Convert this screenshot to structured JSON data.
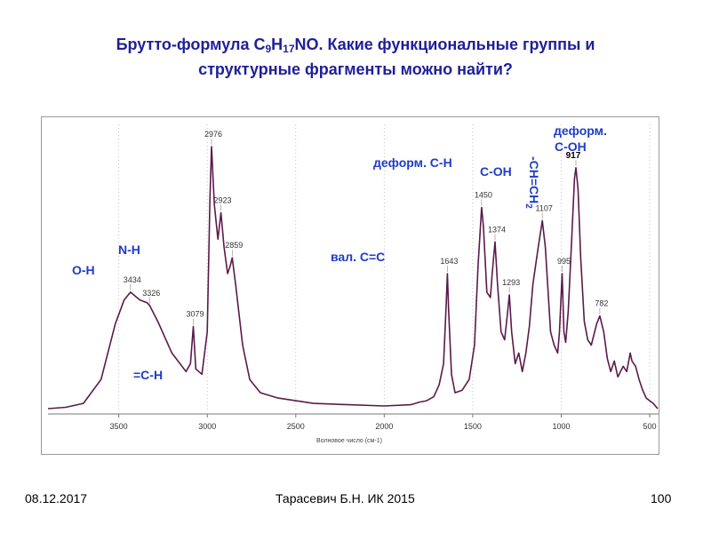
{
  "title": {
    "line1_pre": "Брутто-формула C",
    "sub1": "9",
    "mid1": "H",
    "sub2": "17",
    "line1_post": "NO. Какие функциональные группы и",
    "line2": "структурные фрагменты можно найти?"
  },
  "annotations": {
    "oh": "O-H",
    "nh": "N-H",
    "ch_eq": "=C-H",
    "val_cc": "вал. C=C",
    "deform_ch": "деформ. C-H",
    "coh": "C-OH",
    "vinyl_pre": "-CH=CH",
    "vinyl_sub": "2",
    "deform_coh_1": "деформ.",
    "deform_coh_2": "C-OH"
  },
  "footer": {
    "date": "08.12.2017",
    "author": "Тарасевич Б.Н.   ИК 2015",
    "page": "100"
  },
  "colors": {
    "title": "#1f1f9a",
    "annotation": "#1f3cc8",
    "trace": "#5a1a4a",
    "grid": "#b4b4b4"
  },
  "chart_data": {
    "type": "line",
    "xlabel": "Волновое число (см-1)",
    "ylabel": "",
    "x_reversed": true,
    "xlim": [
      3900,
      450
    ],
    "x_ticks": [
      3500,
      3000,
      2500,
      2000,
      1500,
      1000,
      500
    ],
    "grid": "vertical dashed",
    "peak_labels": [
      {
        "x": 3434,
        "label": "3434"
      },
      {
        "x": 3326,
        "label": "3326"
      },
      {
        "x": 3079,
        "label": "3079"
      },
      {
        "x": 2976,
        "label": "2976"
      },
      {
        "x": 2923,
        "label": "2923"
      },
      {
        "x": 2859,
        "label": "2859"
      },
      {
        "x": 1643,
        "label": "1643"
      },
      {
        "x": 1450,
        "label": "1450"
      },
      {
        "x": 1374,
        "label": "1374"
      },
      {
        "x": 1293,
        "label": "1293"
      },
      {
        "x": 1107,
        "label": "1107"
      },
      {
        "x": 995,
        "label": "995"
      },
      {
        "x": 917,
        "label": "917"
      },
      {
        "x": 782,
        "label": "782"
      }
    ],
    "series": [
      {
        "points": [
          [
            3900,
            0.01
          ],
          [
            3800,
            0.015
          ],
          [
            3700,
            0.03
          ],
          [
            3600,
            0.12
          ],
          [
            3520,
            0.33
          ],
          [
            3470,
            0.42
          ],
          [
            3434,
            0.45
          ],
          [
            3380,
            0.42
          ],
          [
            3340,
            0.41
          ],
          [
            3326,
            0.4
          ],
          [
            3280,
            0.34
          ],
          [
            3200,
            0.22
          ],
          [
            3120,
            0.15
          ],
          [
            3095,
            0.18
          ],
          [
            3079,
            0.32
          ],
          [
            3065,
            0.16
          ],
          [
            3030,
            0.14
          ],
          [
            3000,
            0.3
          ],
          [
            2985,
            0.8
          ],
          [
            2976,
            1.0
          ],
          [
            2960,
            0.78
          ],
          [
            2940,
            0.65
          ],
          [
            2923,
            0.75
          ],
          [
            2905,
            0.62
          ],
          [
            2885,
            0.52
          ],
          [
            2870,
            0.55
          ],
          [
            2859,
            0.58
          ],
          [
            2840,
            0.48
          ],
          [
            2800,
            0.25
          ],
          [
            2760,
            0.12
          ],
          [
            2700,
            0.07
          ],
          [
            2600,
            0.05
          ],
          [
            2500,
            0.04
          ],
          [
            2400,
            0.03
          ],
          [
            2200,
            0.025
          ],
          [
            2000,
            0.02
          ],
          [
            1850,
            0.025
          ],
          [
            1800,
            0.035
          ],
          [
            1760,
            0.04
          ],
          [
            1720,
            0.055
          ],
          [
            1690,
            0.1
          ],
          [
            1665,
            0.18
          ],
          [
            1650,
            0.4
          ],
          [
            1643,
            0.52
          ],
          [
            1636,
            0.38
          ],
          [
            1620,
            0.14
          ],
          [
            1600,
            0.07
          ],
          [
            1560,
            0.08
          ],
          [
            1520,
            0.12
          ],
          [
            1490,
            0.25
          ],
          [
            1470,
            0.55
          ],
          [
            1450,
            0.77
          ],
          [
            1440,
            0.7
          ],
          [
            1420,
            0.45
          ],
          [
            1400,
            0.43
          ],
          [
            1390,
            0.52
          ],
          [
            1374,
            0.64
          ],
          [
            1360,
            0.48
          ],
          [
            1340,
            0.3
          ],
          [
            1320,
            0.27
          ],
          [
            1305,
            0.36
          ],
          [
            1293,
            0.44
          ],
          [
            1280,
            0.3
          ],
          [
            1260,
            0.18
          ],
          [
            1240,
            0.22
          ],
          [
            1220,
            0.15
          ],
          [
            1200,
            0.22
          ],
          [
            1180,
            0.32
          ],
          [
            1160,
            0.48
          ],
          [
            1130,
            0.62
          ],
          [
            1107,
            0.72
          ],
          [
            1090,
            0.62
          ],
          [
            1060,
            0.3
          ],
          [
            1040,
            0.25
          ],
          [
            1020,
            0.22
          ],
          [
            1010,
            0.3
          ],
          [
            995,
            0.52
          ],
          [
            985,
            0.3
          ],
          [
            975,
            0.26
          ],
          [
            960,
            0.38
          ],
          [
            940,
            0.66
          ],
          [
            925,
            0.88
          ],
          [
            917,
            0.92
          ],
          [
            905,
            0.84
          ],
          [
            890,
            0.58
          ],
          [
            870,
            0.34
          ],
          [
            850,
            0.27
          ],
          [
            830,
            0.25
          ],
          [
            800,
            0.33
          ],
          [
            782,
            0.36
          ],
          [
            760,
            0.3
          ],
          [
            740,
            0.2
          ],
          [
            720,
            0.15
          ],
          [
            700,
            0.19
          ],
          [
            680,
            0.13
          ],
          [
            650,
            0.17
          ],
          [
            630,
            0.15
          ],
          [
            610,
            0.22
          ],
          [
            600,
            0.19
          ],
          [
            580,
            0.17
          ],
          [
            560,
            0.12
          ],
          [
            540,
            0.08
          ],
          [
            520,
            0.05
          ],
          [
            500,
            0.04
          ],
          [
            480,
            0.03
          ],
          [
            455,
            0.01
          ]
        ]
      }
    ]
  }
}
